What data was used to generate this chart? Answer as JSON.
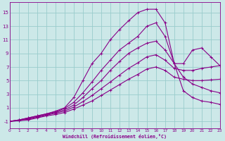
{
  "xlabel": "Windchill (Refroidissement éolien,°C)",
  "background_color": "#cce8e8",
  "grid_color": "#99cccc",
  "line_color": "#880088",
  "xlim": [
    0,
    23
  ],
  "ylim": [
    -2,
    16.5
  ],
  "xticks": [
    0,
    1,
    2,
    3,
    4,
    5,
    6,
    7,
    8,
    9,
    10,
    11,
    12,
    13,
    14,
    15,
    16,
    17,
    18,
    19,
    20,
    21,
    22,
    23
  ],
  "yticks": [
    -1,
    1,
    3,
    5,
    7,
    9,
    11,
    13,
    15
  ],
  "lines": [
    [
      -1,
      -0.8,
      -0.5,
      -0.2,
      0.1,
      0.5,
      1.0,
      2.5,
      5.0,
      7.5,
      9.0,
      11.0,
      12.5,
      13.8,
      15.0,
      15.5,
      15.5,
      13.5,
      7.5,
      3.5,
      2.5,
      2.0,
      1.8,
      1.5
    ],
    [
      -1,
      -0.8,
      -0.5,
      -0.2,
      0.1,
      0.4,
      0.9,
      1.8,
      3.2,
      4.8,
      6.5,
      8.0,
      9.5,
      10.5,
      11.5,
      13.0,
      13.5,
      11.5,
      7.5,
      5.5,
      4.5,
      4.0,
      3.5,
      3.2
    ],
    [
      -1,
      -0.8,
      -0.6,
      -0.3,
      0.0,
      0.3,
      0.7,
      1.4,
      2.5,
      3.8,
      5.0,
      6.5,
      7.8,
      9.0,
      9.8,
      10.5,
      10.8,
      9.5,
      7.5,
      7.5,
      9.5,
      9.8,
      8.5,
      7.2
    ],
    [
      -1,
      -0.9,
      -0.7,
      -0.4,
      -0.1,
      0.2,
      0.5,
      1.1,
      1.9,
      2.8,
      3.8,
      4.8,
      5.8,
      6.8,
      7.6,
      8.5,
      8.8,
      8.0,
      6.8,
      6.5,
      6.5,
      6.8,
      7.0,
      7.2
    ],
    [
      -1,
      -0.9,
      -0.8,
      -0.5,
      -0.2,
      0.0,
      0.3,
      0.8,
      1.4,
      2.0,
      2.8,
      3.6,
      4.4,
      5.2,
      5.9,
      6.7,
      7.0,
      6.5,
      5.5,
      5.2,
      5.0,
      5.0,
      5.1,
      5.2
    ]
  ],
  "marker": "D",
  "markersize": 2,
  "linewidth": 0.8
}
